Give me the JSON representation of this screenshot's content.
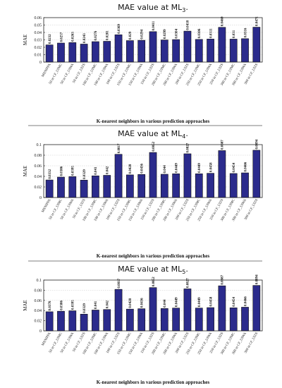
{
  "chart_data": [
    {
      "type": "bar",
      "title": "MAE value at ML",
      "title_sub": "3",
      "title_suffix": ".",
      "xlabel": "K-nearest neighbors in various prediction approaches",
      "ylabel": "MAE",
      "ylim": [
        0,
        0.06
      ],
      "yticks": [
        "0",
        "0.01",
        "0.02",
        "0.03",
        "0.04",
        "0.05",
        "0.06"
      ],
      "bar_color": "#2b2b8c",
      "categories": [
        "MSNIPPA",
        "50 in CF_UIMC",
        "50 in CF_UIWA",
        "50 in CF_UIZS",
        "100 in CF_UIMC",
        "100 in CF_UIWA",
        "100 in CF_UIZS",
        "150 in CF_UIMC",
        "150 in CF_UIWA",
        "150 in CF_UIZS",
        "200 in CF_UIMC",
        "200 in CF_UIWA",
        "200 in CF_UIZS",
        "250 in CF_UIMC",
        "250 in CF_UIWA",
        "250 in CF_UIZS",
        "300 in CF_UIMC",
        "300 in CF_UIWA",
        "300 in CF_UIZS"
      ],
      "values": [
        0.0232,
        0.0257,
        0.0263,
        0.0243,
        0.0276,
        0.0281,
        0.0369,
        0.029,
        0.0294,
        0.0411,
        0.0299,
        0.0304,
        0.0418,
        0.0306,
        0.0311,
        0.0469,
        0.031,
        0.0316,
        0.0471
      ],
      "value_labels": [
        "0.0232",
        "0.0257",
        "0.0263",
        "0.0243",
        "0.0276",
        "0.0281",
        "0.0369",
        "0.029",
        "0.0294",
        "0.0411",
        "0.0299",
        "0.0304",
        "0.0418",
        "0.0306",
        "0.0311",
        "0.0469",
        "0.031",
        "0.0316",
        "0.0471"
      ],
      "grid": true
    },
    {
      "type": "bar",
      "title": "MAE value at ML",
      "title_sub": "4",
      "title_suffix": ".",
      "xlabel": "K-nearest neighbors in various prediction approaches",
      "ylabel": "MAE",
      "ylim": [
        0,
        0.1
      ],
      "yticks": [
        "0",
        "0.02",
        "0.04",
        "0.06",
        "0.08",
        "0.1"
      ],
      "bar_color": "#2b2b8c",
      "categories": [
        "MSNIPPA",
        "50 in CF_UIMC",
        "50 in CF_UIWA",
        "50 in CF_UIZS",
        "100 in CF_UIMC",
        "100 in CF_UIWA",
        "100 in CF_UIZS",
        "150 in CF_UIMC",
        "150 in CF_UIWA",
        "150 in CF_UIZS",
        "200 in CF_UIMC",
        "200 in CF_UIWA",
        "200 in CF_UIZS",
        "250 in CF_UIMC",
        "250 in CF_UIWA",
        "250 in CF_UIZS",
        "300 in CF_UIMC",
        "300 in CF_UIWA",
        "300 in CF_UIZS"
      ],
      "values": [
        0.0332,
        0.0386,
        0.0395,
        0.0329,
        0.041,
        0.042,
        0.0817,
        0.0428,
        0.0436,
        0.0852,
        0.044,
        0.0449,
        0.0827,
        0.0449,
        0.0458,
        0.0887,
        0.0454,
        0.0466,
        0.0894
      ],
      "value_labels": [
        "0.0332",
        "0.0386",
        "0.0395",
        "0.0329",
        "0.041",
        "0.042",
        "0.0817",
        "0.0428",
        "0.0436",
        "0.0852",
        "0.044",
        "0.0449",
        "0.0827",
        "0.0449",
        "0.0458",
        "0.0887",
        "0.0454",
        "0.0466",
        "0.0894"
      ],
      "grid": true
    },
    {
      "type": "bar",
      "title": "MAE value at ML",
      "title_sub": "5",
      "title_suffix": ".",
      "xlabel": "K-nearest neighbors in various prediction approaches",
      "ylabel": "MAE",
      "ylim": [
        0,
        0.1
      ],
      "yticks": [
        "0",
        "0.02",
        "0.04",
        "0.06",
        "0.08",
        "0.1"
      ],
      "bar_color": "#2b2b8c",
      "categories": [
        "MSNIPPA",
        "50 in CF_UIMC",
        "50 in CF_UIWA",
        "50 in CF_UIZS",
        "100 in CF_UIMC",
        "100 in CF_UIWA",
        "100 in CF_UIZS",
        "150 in CF_UIMC",
        "150 in CF_UIWA",
        "150 in CF_UIZS",
        "200 in CF_UIMC",
        "200 in CF_UIWA",
        "200 in CF_UIZS",
        "250 in CF_UIMC",
        "250 in CF_UIWA",
        "250 in CF_UIZS",
        "300 in CF_UIMC",
        "300 in CF_UIWA",
        "300 in CF_UIZS"
      ],
      "values": [
        0.0376,
        0.0386,
        0.0395,
        0.0329,
        0.041,
        0.042,
        0.0817,
        0.0428,
        0.0436,
        0.0852,
        0.044,
        0.0449,
        0.0827,
        0.0449,
        0.0458,
        0.0887,
        0.0454,
        0.0466,
        0.0894
      ],
      "value_labels": [
        "0.0376",
        "0.0386",
        "0.0395",
        "0.0329",
        "0.041",
        "0.042",
        "0.0817",
        "0.0428",
        "0.0436",
        "0.0852",
        "0.044",
        "0.0449",
        "0.0827",
        "0.0449",
        "0.0458",
        "0.0887",
        "0.0454",
        "0.0466",
        "0.0894"
      ],
      "grid": true
    }
  ]
}
